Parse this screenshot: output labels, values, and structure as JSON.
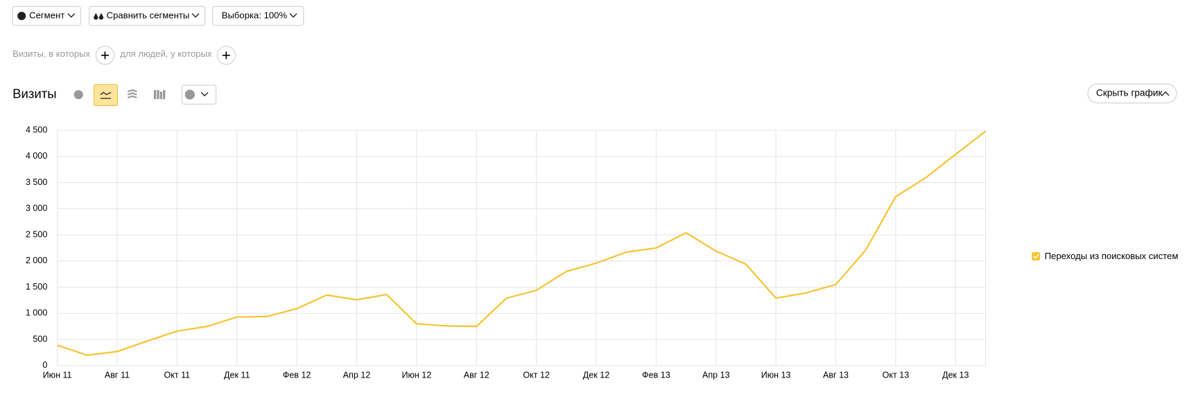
{
  "toolbar": {
    "segment": "Сегмент",
    "compare": "Сравнить сегменты",
    "sample": "Выборка: 100%"
  },
  "filters": {
    "visits": "Визиты, в которых",
    "people": "для людей, у которых"
  },
  "heading": "Визиты",
  "hide_chart": "Скрыть график",
  "chart_data": {
    "type": "line",
    "categories": [
      "Июн 11",
      null,
      "Авг 11",
      null,
      "Окт 11",
      null,
      "Дек 11",
      null,
      "Фев 12",
      null,
      "Апр 12",
      null,
      "Июн 12",
      null,
      "Авг 12",
      null,
      "Окт 12",
      null,
      "Дек 12",
      null,
      "Фев 13",
      null,
      "Апр 13",
      null,
      "Июн 13",
      null,
      "Авг 13",
      null,
      "Окт 13",
      null,
      "Дек 13",
      null
    ],
    "series": [
      {
        "name": "Переходы из поисковых систем",
        "color": "#f5c431",
        "values": [
          390,
          200,
          270,
          470,
          660,
          750,
          930,
          940,
          1090,
          1350,
          1260,
          1360,
          800,
          760,
          750,
          1290,
          1440,
          1800,
          1960,
          2170,
          2250,
          2540,
          2190,
          1940,
          1290,
          1390,
          1550,
          2210,
          3230,
          3590,
          4040,
          4480
        ]
      }
    ],
    "ylim": [
      0,
      4500
    ],
    "yticks": [
      0,
      500,
      {
        "value": 1000,
        "label": "1 000"
      },
      {
        "value": 1500,
        "label": "1 500"
      },
      {
        "value": 2000,
        "label": "2 000"
      },
      {
        "value": 2500,
        "label": "2 500"
      },
      {
        "value": 3000,
        "label": "3 000"
      },
      {
        "value": 3500,
        "label": "3 500"
      },
      {
        "value": 4000,
        "label": "4 000"
      },
      {
        "value": 4500,
        "label": "4 500"
      }
    ],
    "grid": true
  }
}
